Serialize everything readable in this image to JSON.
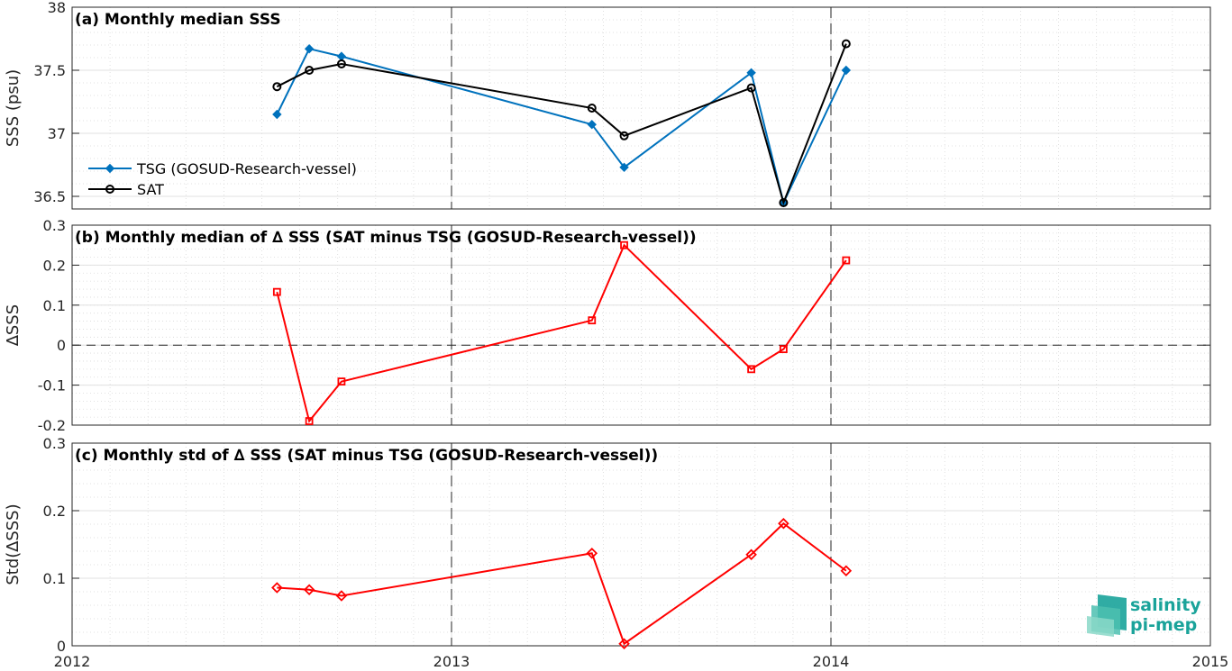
{
  "chart_data": [
    {
      "type": "line",
      "title": "(a) Monthly median SSS",
      "ylabel": "SSS (psu)",
      "xlim": [
        2012,
        2015
      ],
      "ylim": [
        36.4,
        38
      ],
      "yticks": [
        "36.5",
        "37",
        "37.5",
        "38"
      ],
      "grid": true,
      "legend_position": "lower-left",
      "x": [
        2012.54,
        2012.625,
        2012.71,
        2013.37,
        2013.455,
        2013.79,
        2013.875,
        2014.04
      ],
      "series": [
        {
          "name": "TSG (GOSUD-Research-vessel)",
          "color": "#0072BD",
          "marker": "diamond",
          "values": [
            37.15,
            37.67,
            37.61,
            37.07,
            36.73,
            37.48,
            36.45,
            37.5
          ]
        },
        {
          "name": "SAT",
          "color": "#000000",
          "marker": "circle",
          "values": [
            37.37,
            37.5,
            37.55,
            37.2,
            36.98,
            37.36,
            36.45,
            37.71
          ]
        }
      ]
    },
    {
      "type": "line",
      "title": "(b) Monthly median of ∆ SSS (SAT minus TSG (GOSUD-Research-vessel))",
      "ylabel": "∆SSS",
      "xlim": [
        2012,
        2015
      ],
      "ylim": [
        -0.2,
        0.3
      ],
      "yticks": [
        "-0.2",
        "-0.1",
        "0",
        "0.1",
        "0.2",
        "0.3"
      ],
      "grid": true,
      "zero_line": true,
      "x": [
        2012.54,
        2012.625,
        2012.71,
        2013.37,
        2013.455,
        2013.79,
        2013.875,
        2014.04
      ],
      "series": [
        {
          "color": "#FF0000",
          "marker": "square",
          "values": [
            0.133,
            -0.19,
            -0.091,
            0.062,
            0.25,
            -0.06,
            -0.01,
            0.212
          ]
        }
      ]
    },
    {
      "type": "line",
      "title": "(c) Monthly std of ∆ SSS (SAT minus TSG (GOSUD-Research-vessel))",
      "ylabel": "Std(∆SSS)",
      "xlim": [
        2012,
        2015
      ],
      "ylim": [
        0,
        0.3
      ],
      "yticks": [
        "0",
        "0.1",
        "0.2",
        "0.3"
      ],
      "xticks": [
        "2012",
        "2013",
        "2014",
        "2015"
      ],
      "grid": true,
      "x": [
        2012.54,
        2012.625,
        2012.71,
        2013.37,
        2013.455,
        2013.79,
        2013.875,
        2014.04
      ],
      "series": [
        {
          "color": "#FF0000",
          "marker": "diamond",
          "values": [
            0.086,
            0.083,
            0.074,
            0.137,
            0.003,
            0.135,
            0.181,
            0.111
          ]
        }
      ]
    }
  ],
  "logo": {
    "line1": "salinity",
    "line2": "pi-mep"
  }
}
